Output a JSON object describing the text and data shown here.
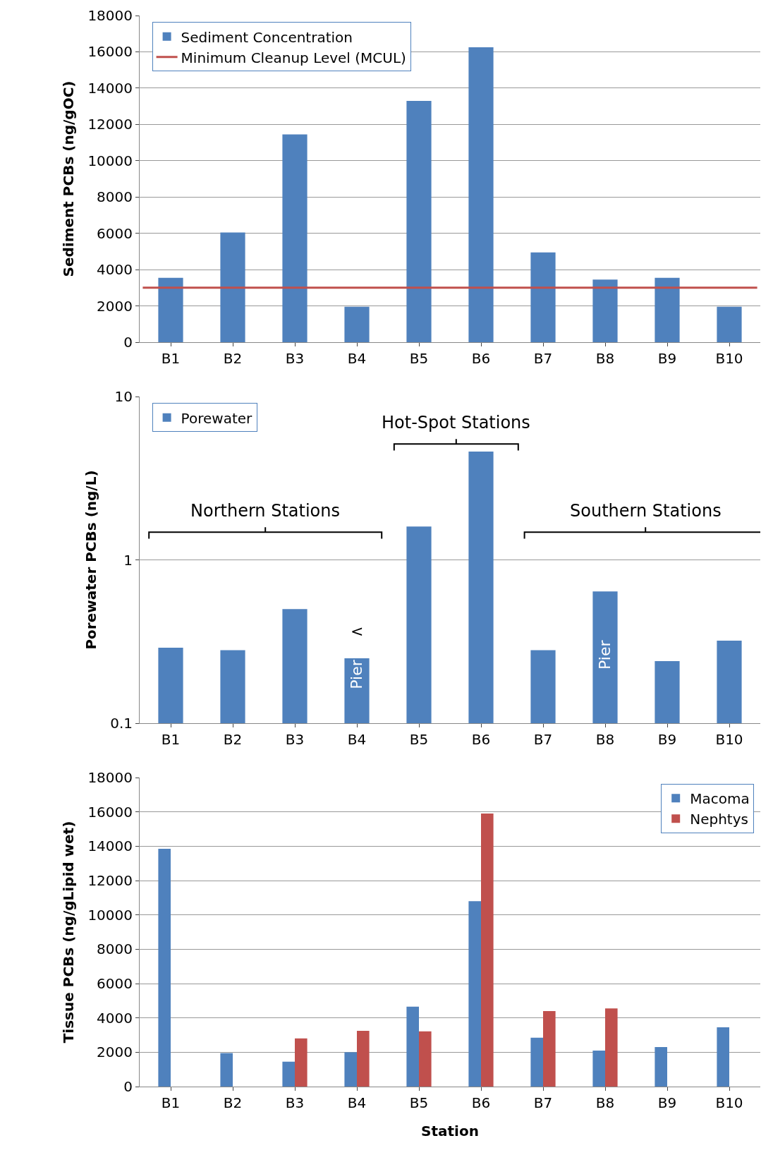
{
  "chart_data": [
    {
      "type": "bar",
      "ylabel": "Sediment PCBs (ng/gOC)",
      "categories": [
        "B1",
        "B2",
        "B3",
        "B4",
        "B5",
        "B6",
        "B7",
        "B8",
        "B9",
        "B10"
      ],
      "series": [
        {
          "name": "Sediment Concentration",
          "color": "#4f81bd",
          "values": [
            3550,
            6050,
            11450,
            1950,
            13300,
            16250,
            4950,
            3450,
            3550,
            1950
          ]
        }
      ],
      "ref_lines": [
        {
          "axis": "y",
          "value": 3000,
          "label": "Minimum Cleanup Level (MCUL)",
          "color": "#c0504d"
        }
      ],
      "ylim": [
        0,
        18000
      ],
      "yticks": [
        0,
        2000,
        4000,
        6000,
        8000,
        10000,
        12000,
        14000,
        16000,
        18000
      ],
      "grid": "y",
      "legend": "top left"
    },
    {
      "type": "bar",
      "ylabel": "Porewater PCBs (ng/L)",
      "categories": [
        "B1",
        "B2",
        "B3",
        "B4",
        "B5",
        "B6",
        "B7",
        "B8",
        "B9",
        "B10"
      ],
      "series": [
        {
          "name": "Porewater",
          "color": "#4f81bd",
          "values": [
            0.29,
            0.28,
            0.5,
            0.25,
            1.6,
            4.6,
            0.28,
            0.64,
            0.24,
            0.32
          ]
        }
      ],
      "log": "y",
      "ylim": [
        0.1,
        10
      ],
      "yticks": [
        0.1,
        1,
        10
      ],
      "grid": "y",
      "legend": "top left",
      "annotations": [
        "Hot-Spot Stations",
        "Northern Stations",
        "Southern Stations",
        "Pier",
        "<",
        "Pier"
      ]
    },
    {
      "type": "bar",
      "xlabel": "Station",
      "ylabel": "Tissue PCBs (ng/gLipid wet)",
      "categories": [
        "B1",
        "B2",
        "B3",
        "B4",
        "B5",
        "B6",
        "B7",
        "B8",
        "B9",
        "B10"
      ],
      "series": [
        {
          "name": "Macoma",
          "color": "#4f81bd",
          "values": [
            13850,
            1950,
            1450,
            2000,
            4650,
            10800,
            2850,
            2100,
            2300,
            3450
          ]
        },
        {
          "name": "Nephtys",
          "color": "#c0504d",
          "values": [
            null,
            null,
            2800,
            3250,
            3220,
            15900,
            4400,
            4550,
            null,
            null
          ]
        }
      ],
      "ylim": [
        0,
        18000
      ],
      "yticks": [
        0,
        2000,
        4000,
        6000,
        8000,
        10000,
        12000,
        14000,
        16000,
        18000
      ],
      "grid": "y",
      "legend": "top right"
    }
  ]
}
